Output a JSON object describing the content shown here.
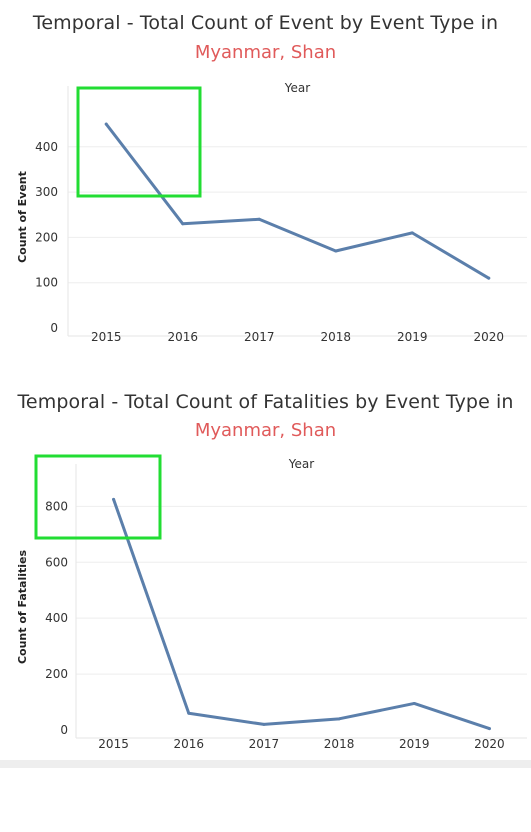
{
  "colors": {
    "title": "#333333",
    "subtitle": "#e05a5a",
    "line": "#5b7fab",
    "grid": "#eeeeee",
    "highlight": "#22dd33"
  },
  "chart_data": [
    {
      "type": "line",
      "title": "Temporal - Total Count of Event by Event Type  in",
      "subtitle": "Myanmar, Shan",
      "header": "Year",
      "xlabel": "",
      "ylabel": "Count of Event",
      "categories": [
        "2015",
        "2016",
        "2017",
        "2018",
        "2019",
        "2020"
      ],
      "values": [
        450,
        230,
        240,
        170,
        210,
        110
      ],
      "yticks": [
        0,
        100,
        200,
        300,
        400
      ],
      "ylim": [
        0,
        490
      ],
      "grid": true,
      "highlight_box": true
    },
    {
      "type": "line",
      "title": "Temporal - Total Count of Fatalities by Event Type  in",
      "subtitle": "Myanmar, Shan",
      "header": "Year",
      "xlabel": "",
      "ylabel": "Count of Fatalities",
      "categories": [
        "2015",
        "2016",
        "2017",
        "2018",
        "2019",
        "2020"
      ],
      "values": [
        825,
        60,
        20,
        40,
        95,
        5
      ],
      "yticks": [
        0,
        200,
        400,
        600,
        800
      ],
      "ylim": [
        0,
        880
      ],
      "grid": true,
      "highlight_box": true
    }
  ]
}
